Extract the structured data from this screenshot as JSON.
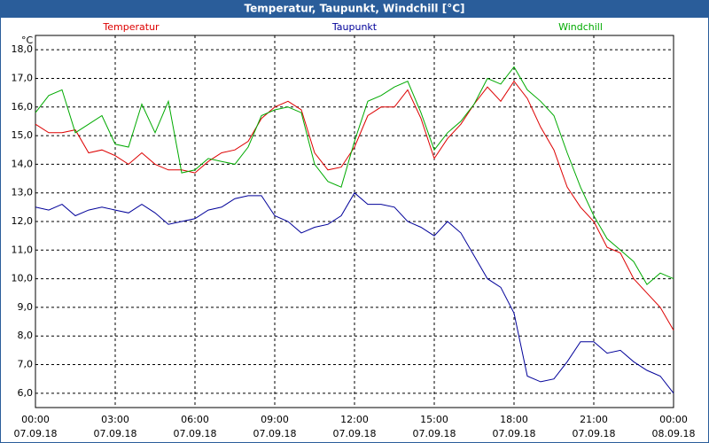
{
  "chart_data": {
    "type": "line",
    "title": "Temperatur, Taupunkt, Windchill [°C]",
    "y_label": "°C",
    "x": [
      0,
      0.5,
      1,
      1.5,
      2,
      2.5,
      3,
      3.5,
      4,
      4.5,
      5,
      5.5,
      6,
      6.5,
      7,
      7.5,
      8,
      8.5,
      9,
      9.5,
      10,
      10.5,
      11,
      11.5,
      12,
      12.5,
      13,
      13.5,
      14,
      14.5,
      15,
      15.5,
      16,
      16.5,
      17,
      17.5,
      18,
      18.5,
      19,
      19.5,
      20,
      20.5,
      21,
      21.5,
      22,
      22.5,
      23,
      23.5,
      24
    ],
    "series": [
      {
        "name": "Temperatur",
        "color": "#dd0000",
        "values": [
          15.4,
          15.1,
          15.1,
          15.2,
          14.4,
          14.5,
          14.3,
          14.0,
          14.4,
          14.0,
          13.8,
          13.8,
          13.7,
          14.1,
          14.4,
          14.5,
          14.8,
          15.6,
          16.0,
          16.2,
          15.9,
          14.4,
          13.8,
          13.9,
          14.6,
          15.7,
          16.0,
          16.0,
          16.6,
          15.6,
          14.2,
          14.9,
          15.4,
          16.1,
          16.7,
          16.2,
          16.9,
          16.3,
          15.3,
          14.5,
          13.2,
          12.5,
          12.0,
          11.1,
          10.9,
          10.0,
          9.5,
          9.0,
          8.2
        ]
      },
      {
        "name": "Taupunkt",
        "color": "#000099",
        "values": [
          12.5,
          12.4,
          12.6,
          12.2,
          12.4,
          12.5,
          12.4,
          12.3,
          12.6,
          12.3,
          11.9,
          12.0,
          12.1,
          12.4,
          12.5,
          12.8,
          12.9,
          12.9,
          12.2,
          12.0,
          11.6,
          11.8,
          11.9,
          12.2,
          13.0,
          12.6,
          12.6,
          12.5,
          12.0,
          11.8,
          11.5,
          12.0,
          11.6,
          10.8,
          10.0,
          9.7,
          8.8,
          6.6,
          6.4,
          6.5,
          7.1,
          7.8,
          7.8,
          7.4,
          7.5,
          7.1,
          6.8,
          6.6,
          6.0
        ]
      },
      {
        "name": "Windchill",
        "color": "#00aa00",
        "values": [
          15.8,
          16.4,
          16.6,
          15.1,
          15.4,
          15.7,
          14.7,
          14.6,
          16.1,
          15.1,
          16.2,
          13.7,
          13.8,
          14.2,
          14.1,
          14.0,
          14.6,
          15.7,
          15.9,
          16.0,
          15.8,
          14.0,
          13.4,
          13.2,
          14.8,
          16.2,
          16.4,
          16.7,
          16.9,
          15.8,
          14.5,
          15.1,
          15.5,
          16.1,
          17.0,
          16.8,
          17.4,
          16.6,
          16.2,
          15.7,
          14.4,
          13.2,
          12.2,
          11.4,
          11.0,
          10.6,
          9.8,
          10.2,
          10.0
        ]
      }
    ],
    "xlim": [
      0,
      24
    ],
    "xticks": [
      {
        "value": 0,
        "label": "00:00"
      },
      {
        "value": 3,
        "label": "03:00"
      },
      {
        "value": 6,
        "label": "06:00"
      },
      {
        "value": 9,
        "label": "09:00"
      },
      {
        "value": 12,
        "label": "12:00"
      },
      {
        "value": 15,
        "label": "15:00"
      },
      {
        "value": 18,
        "label": "18:00"
      },
      {
        "value": 21,
        "label": "21:00"
      },
      {
        "value": 24,
        "label": "00:00"
      }
    ],
    "xtick_dates": [
      "07.09.18",
      "07.09.18",
      "07.09.18",
      "07.09.18",
      "07.09.18",
      "07.09.18",
      "07.09.18",
      "07.09.18",
      "08.09.18"
    ],
    "ylim": [
      5.5,
      18.5
    ],
    "yticks": [
      {
        "value": 6,
        "label": "6,0"
      },
      {
        "value": 7,
        "label": "7,0"
      },
      {
        "value": 8,
        "label": "8,0"
      },
      {
        "value": 9,
        "label": "9,0"
      },
      {
        "value": 10,
        "label": "10,0"
      },
      {
        "value": 11,
        "label": "11,0"
      },
      {
        "value": 12,
        "label": "12,0"
      },
      {
        "value": 13,
        "label": "13,0"
      },
      {
        "value": 14,
        "label": "14,0"
      },
      {
        "value": 15,
        "label": "15,0"
      },
      {
        "value": 16,
        "label": "16,0"
      },
      {
        "value": 17,
        "label": "17,0"
      },
      {
        "value": 18,
        "label": "18,0"
      }
    ],
    "grid": true
  }
}
